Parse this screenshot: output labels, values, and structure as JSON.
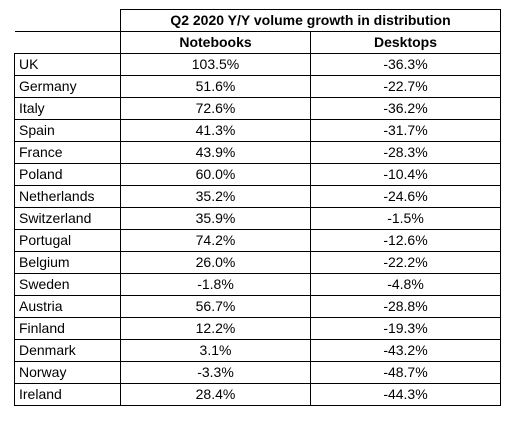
{
  "chart_data": {
    "type": "table",
    "title": "Q2 2020 Y/Y volume growth in distribution",
    "columns": [
      "Notebooks",
      "Desktops"
    ],
    "rows": [
      {
        "country": "UK",
        "notebooks": "103.5%",
        "desktops": "-36.3%"
      },
      {
        "country": "Germany",
        "notebooks": "51.6%",
        "desktops": "-22.7%"
      },
      {
        "country": "Italy",
        "notebooks": "72.6%",
        "desktops": "-36.2%"
      },
      {
        "country": "Spain",
        "notebooks": "41.3%",
        "desktops": "-31.7%"
      },
      {
        "country": "France",
        "notebooks": "43.9%",
        "desktops": "-28.3%"
      },
      {
        "country": "Poland",
        "notebooks": "60.0%",
        "desktops": "-10.4%"
      },
      {
        "country": "Netherlands",
        "notebooks": "35.2%",
        "desktops": "-24.6%"
      },
      {
        "country": "Switzerland",
        "notebooks": "35.9%",
        "desktops": "-1.5%"
      },
      {
        "country": "Portugal",
        "notebooks": "74.2%",
        "desktops": "-12.6%"
      },
      {
        "country": "Belgium",
        "notebooks": "26.0%",
        "desktops": "-22.2%"
      },
      {
        "country": "Sweden",
        "notebooks": "-1.8%",
        "desktops": "-4.8%"
      },
      {
        "country": "Austria",
        "notebooks": "56.7%",
        "desktops": "-28.8%"
      },
      {
        "country": "Finland",
        "notebooks": "12.2%",
        "desktops": "-19.3%"
      },
      {
        "country": "Denmark",
        "notebooks": "3.1%",
        "desktops": "-43.2%"
      },
      {
        "country": "Norway",
        "notebooks": "-3.3%",
        "desktops": "-48.7%"
      },
      {
        "country": "Ireland",
        "notebooks": "28.4%",
        "desktops": "-44.3%"
      }
    ]
  }
}
